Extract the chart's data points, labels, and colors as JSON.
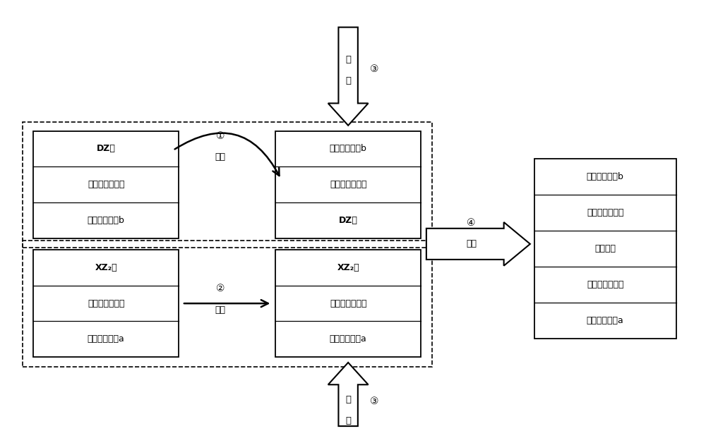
{
  "bg_color": "#ffffff",
  "left_top_layers": [
    "DZ层",
    "无机空穴传输层",
    "透明导电基板b"
  ],
  "left_top_bold": [
    true,
    false,
    false
  ],
  "left_bottom_layers": [
    "XZ₂层",
    "无机电子传输层",
    "透明导电基板a"
  ],
  "left_bottom_bold": [
    true,
    false,
    false
  ],
  "right_top_layers": [
    "透明导电基板b",
    "无机空穴传输层",
    "DZ层"
  ],
  "right_top_bold": [
    false,
    false,
    true
  ],
  "right_bottom_layers": [
    "XZ₂层",
    "无机电子传输层",
    "透明导电基板a"
  ],
  "right_bottom_bold": [
    true,
    false,
    false
  ],
  "final_layers": [
    "透明导电基板b",
    "无机空穴传输层",
    "光捕获层",
    "无机电子传输层",
    "透明导电基板a"
  ],
  "final_bold": [
    false,
    false,
    false,
    false,
    false
  ],
  "label_1": "①",
  "label_fan": "翻转",
  "label_2": "②",
  "label_ping": "平移",
  "label_3": "③",
  "label_ya": "压",
  "label_li": "力",
  "label_4": "④",
  "label_tui": "退火"
}
